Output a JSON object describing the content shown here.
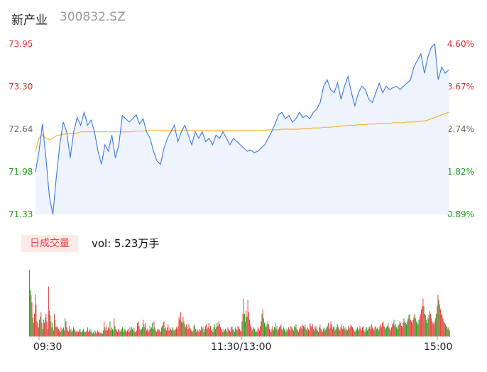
{
  "header": {
    "name": "新产业",
    "code": "300832.SZ"
  },
  "volume_tab": {
    "label": "日成交量",
    "vol_text": "vol: 5.23万手"
  },
  "colors": {
    "price_line": "#3a78e8",
    "avg_line": "#f2b43a",
    "up": "#e84040",
    "down": "#18a818",
    "area": "#eef3fd"
  },
  "chart_data": [
    {
      "type": "line",
      "y_left_ticks": [
        "73.95",
        "73.30",
        "72.64",
        "71.98",
        "71.33"
      ],
      "y_right_ticks": [
        "4.60%",
        "3.67%",
        "2.74%",
        "1.82%",
        "0.89%"
      ],
      "ylim": [
        71.33,
        73.95
      ],
      "x_ticks": [
        "09:30",
        "11:30/13:00",
        "15:00"
      ],
      "series": [
        {
          "values": [
            71.98,
            72.3,
            72.72,
            72.2,
            71.6,
            71.33,
            71.9,
            72.4,
            72.75,
            72.6,
            72.2,
            72.6,
            72.82,
            72.7,
            72.9,
            72.7,
            72.78,
            72.6,
            72.3,
            72.1,
            72.4,
            72.3,
            72.55,
            72.2,
            72.4,
            72.85,
            72.8,
            72.75,
            72.8,
            72.86,
            72.72,
            72.8,
            72.6,
            72.5,
            72.3,
            72.15,
            72.1,
            72.35,
            72.5,
            72.6,
            72.7,
            72.45,
            72.6,
            72.7,
            72.55,
            72.4,
            72.6,
            72.5,
            72.6,
            72.45,
            72.5,
            72.4,
            72.55,
            72.5,
            72.6,
            72.5,
            72.4,
            72.5,
            72.45,
            72.4,
            72.35,
            72.3,
            72.32,
            72.28,
            72.3,
            72.35,
            72.4,
            72.5,
            72.6,
            72.72,
            72.86,
            72.9,
            72.8,
            72.85,
            72.75,
            72.8,
            72.9,
            72.82,
            72.85,
            72.8,
            72.9,
            72.95,
            73.05,
            73.3,
            73.4,
            73.25,
            73.2,
            73.35,
            73.1,
            73.3,
            73.45,
            73.2,
            73.0,
            73.2,
            73.3,
            73.25,
            73.1,
            73.05,
            73.2,
            73.35,
            73.2,
            73.3,
            73.25,
            73.28,
            73.3,
            73.25,
            73.3,
            73.35,
            73.4,
            73.6,
            73.7,
            73.8,
            73.5,
            73.75,
            73.9,
            73.95,
            73.4,
            73.6,
            73.5,
            73.55
          ],
          "color": "#3a78e8"
        },
        {
          "values": [
            72.3,
            72.5,
            72.55,
            72.5,
            72.48,
            72.5,
            72.54,
            72.55,
            72.56,
            72.57,
            72.57,
            72.58,
            72.58,
            72.6,
            72.6,
            72.6,
            72.6,
            72.6,
            72.6,
            72.6,
            72.6,
            72.6,
            72.6,
            72.6,
            72.6,
            72.6,
            72.6,
            72.6,
            72.6,
            72.61,
            72.61,
            72.61,
            72.62,
            72.62,
            72.62,
            72.62,
            72.62,
            72.62,
            72.62,
            72.62,
            72.62,
            72.62,
            72.62,
            72.62,
            72.62,
            72.62,
            72.62,
            72.62,
            72.62,
            72.62,
            72.62,
            72.62,
            72.62,
            72.62,
            72.62,
            72.62,
            72.62,
            72.62,
            72.62,
            72.62,
            72.62,
            72.62,
            72.62,
            72.62,
            72.62,
            72.62,
            72.62,
            72.63,
            72.63,
            72.63,
            72.63,
            72.64,
            72.64,
            72.64,
            72.64,
            72.64,
            72.64,
            72.65,
            72.65,
            72.65,
            72.66,
            72.66,
            72.66,
            72.67,
            72.67,
            72.67,
            72.68,
            72.68,
            72.69,
            72.69,
            72.7,
            72.7,
            72.7,
            72.71,
            72.71,
            72.71,
            72.72,
            72.72,
            72.72,
            72.73,
            72.73,
            72.73,
            72.73,
            72.74,
            72.74,
            72.74,
            72.74,
            72.75,
            72.75,
            72.75,
            72.76,
            72.76,
            72.77,
            72.78,
            72.8,
            72.82,
            72.84,
            72.86,
            72.88,
            72.9
          ],
          "color": "#f2b43a"
        }
      ]
    },
    {
      "type": "bar",
      "volumes": [
        88,
        62,
        55,
        45,
        25,
        18,
        30,
        55,
        42,
        20,
        18,
        12,
        22,
        26,
        32,
        18,
        10,
        22,
        18,
        25,
        30,
        20,
        10,
        66,
        34,
        28,
        20,
        12,
        18,
        8,
        30,
        22,
        12,
        14,
        12,
        10,
        8,
        6,
        12,
        8,
        10,
        12,
        8,
        24,
        20,
        12,
        8,
        6,
        14,
        8,
        10,
        6,
        8,
        12,
        10,
        8,
        6,
        8,
        6,
        6,
        8,
        10,
        6,
        6,
        8,
        10,
        6,
        6,
        6,
        8,
        12,
        6,
        8,
        10,
        6,
        8,
        4,
        6,
        4,
        8,
        6,
        4,
        8,
        6,
        6,
        4,
        6,
        4,
        4,
        8,
        20,
        12,
        8,
        14,
        8,
        12,
        10,
        20,
        8,
        12,
        10,
        8,
        24,
        14,
        10,
        8,
        6,
        10,
        8,
        6,
        8,
        10,
        12,
        6,
        8,
        10,
        8,
        6,
        8,
        10,
        6,
        12,
        8,
        12,
        10,
        8,
        12,
        6,
        6,
        8,
        18,
        20,
        14,
        10,
        8,
        10,
        12,
        22,
        16,
        12,
        18,
        8,
        10,
        6,
        8,
        14,
        10,
        12,
        18,
        10,
        20,
        12,
        8,
        6,
        10,
        8,
        10,
        8,
        6,
        12,
        14,
        18,
        20,
        10,
        12,
        8,
        12,
        16,
        8,
        12,
        10,
        8,
        12,
        10,
        8,
        8,
        10,
        12,
        10,
        14,
        26,
        22,
        32,
        20,
        18,
        26,
        20,
        16,
        12,
        16,
        14,
        10,
        16,
        12,
        10,
        8,
        6,
        8,
        14,
        16,
        10,
        6,
        10,
        8,
        6,
        10,
        8,
        14,
        10,
        12,
        6,
        10,
        14,
        16,
        10,
        12,
        18,
        10,
        14,
        8,
        10,
        6,
        12,
        16,
        10,
        12,
        18,
        14,
        20,
        16,
        12,
        10,
        8,
        6,
        10,
        8,
        10,
        8,
        6,
        12,
        10,
        8,
        6,
        12,
        14,
        10,
        8,
        6,
        12,
        10,
        8,
        14,
        12,
        10,
        8,
        6,
        20,
        30,
        50,
        30,
        20,
        34,
        26,
        48,
        32,
        22,
        16,
        12,
        8,
        10,
        12,
        10,
        6,
        8,
        6,
        12,
        10,
        8,
        14,
        20,
        30,
        36,
        24,
        18,
        14,
        12,
        16,
        20,
        16,
        10,
        8,
        6,
        10,
        14,
        8,
        12,
        18,
        10,
        14,
        8,
        10,
        12,
        14,
        16,
        10,
        8,
        12,
        10,
        8,
        6,
        10,
        8,
        12,
        10,
        8,
        14,
        12,
        10,
        8,
        14,
        12,
        16,
        10,
        8,
        6,
        10,
        12,
        14,
        10,
        16,
        14,
        12,
        16,
        10,
        8,
        12,
        10,
        8,
        18,
        14,
        12,
        16,
        10,
        8,
        12,
        14,
        10,
        8,
        6,
        12,
        16,
        10,
        8,
        6,
        10,
        12,
        8,
        10,
        12,
        14,
        18,
        10,
        12,
        20,
        16,
        10,
        12,
        14,
        8,
        10,
        12,
        16,
        12,
        10,
        8,
        12,
        16,
        10,
        14,
        10,
        12,
        8,
        10,
        8,
        14,
        10,
        12,
        16,
        14,
        12,
        10,
        8,
        6,
        8,
        10,
        12,
        8,
        10,
        14,
        10,
        8,
        12,
        14,
        8,
        6,
        10,
        12,
        8,
        10,
        12,
        14,
        10,
        16,
        12,
        10,
        8,
        12,
        14,
        10,
        12,
        8,
        10,
        14,
        16,
        12,
        18,
        20,
        14,
        12,
        10,
        12,
        14,
        18,
        12,
        10,
        8,
        12,
        16,
        18,
        22,
        14,
        16,
        12,
        10,
        14,
        16,
        20,
        18,
        14,
        12,
        18,
        24,
        20,
        18,
        16,
        20,
        24,
        28,
        30,
        22,
        20,
        18,
        22,
        26,
        30,
        24,
        20,
        18,
        16,
        22,
        26,
        30,
        36,
        40,
        50,
        40,
        30,
        28,
        22,
        18,
        24,
        28,
        34,
        30,
        24,
        20,
        18,
        16,
        20,
        24,
        30,
        40,
        55,
        48,
        42,
        36,
        30,
        28,
        24,
        20,
        18,
        16,
        14,
        12,
        10,
        12,
        8
      ]
    }
  ]
}
